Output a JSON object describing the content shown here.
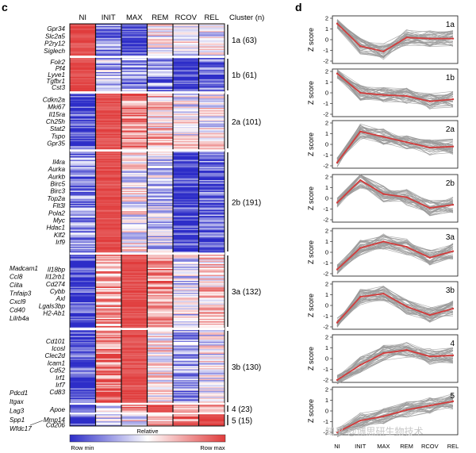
{
  "panel_c_label": "c",
  "panel_d_label": "d",
  "heatmap": {
    "columns": [
      "NI",
      "INIT",
      "MAX",
      "REM",
      "RCOV",
      "REL"
    ],
    "cluster_header": "Cluster (n)",
    "clusters": [
      {
        "name": "1a (63)",
        "genes": [
          "Gpr34",
          "Slc2a5",
          "P2ry12",
          "Siglech"
        ],
        "left_genes": []
      },
      {
        "name": "1b (61)",
        "genes": [
          "Folr2",
          "Pf4",
          "Lyve1",
          "Tgfbr1",
          "Cst3"
        ],
        "left_genes": []
      },
      {
        "name": "2a (101)",
        "genes": [
          "Cdkn2a",
          "Mki67",
          "Il15ra",
          "Ch25h",
          "Stat2",
          "Tspo",
          "Gpr35"
        ],
        "left_genes": []
      },
      {
        "name": "2b (191)",
        "genes": [
          "Il4ra",
          "Aurka",
          "Aurkb",
          "Birc5",
          "Birc3",
          "Top2a",
          "Flt3l",
          "Pola2",
          "Myc",
          "Hdac1",
          "Klf2",
          "Irf9"
        ],
        "left_genes": []
      },
      {
        "name": "3a (132)",
        "genes": [
          "Il18bp",
          "Il12rb1",
          "Cd274",
          "Cybb",
          "Axl",
          "Lgals3bp",
          "H2-Ab1"
        ],
        "left_genes": [
          "Madcam1",
          "Ccl8",
          "Ciita",
          "Tnfaip3",
          "Cxcl9",
          "Cd40",
          "Lilrb4a"
        ]
      },
      {
        "name": "3b (130)",
        "genes": [
          "Cd101",
          "Icosl",
          "Clec2d",
          "Icam1",
          "Cd52",
          "Irf1",
          "Irf7",
          "Cd83"
        ],
        "left_genes": [
          "Pdcd1",
          "Itgax",
          "Lag3"
        ]
      },
      {
        "name": "4 (23)",
        "genes": [
          "Apoe"
        ],
        "left_genes": []
      },
      {
        "name": "5 (15)",
        "genes": [
          "Mmp14",
          "Cd206"
        ],
        "left_genes": [
          "Spp1",
          "Wfdc17"
        ]
      }
    ],
    "colorbar": {
      "title": "Relative",
      "min_label": "Row min",
      "max_label": "Row max",
      "colors": {
        "min": "#2d2dc8",
        "mid": "#ffffff",
        "max": "#e03c3c"
      }
    }
  },
  "chart_data": {
    "type": "line",
    "x": [
      "NI",
      "INIT",
      "MAX",
      "REM",
      "RCOV",
      "REL"
    ],
    "ylabel": "Z score",
    "ylim": [
      -2,
      2
    ],
    "yticks": [
      -2,
      -1,
      0,
      1,
      2
    ],
    "series_colors": {
      "mean": "#d23c3c",
      "genes": "#9a9a9a"
    },
    "panels": [
      {
        "name": "1a",
        "mean": [
          1.5,
          -0.6,
          -1.1,
          0.2,
          0.1,
          0.1
        ]
      },
      {
        "name": "1b",
        "mean": [
          1.8,
          0.0,
          -0.2,
          -0.3,
          -0.8,
          -0.6
        ]
      },
      {
        "name": "2a",
        "mean": [
          -1.7,
          1.2,
          0.7,
          0.2,
          -0.3,
          -0.2
        ]
      },
      {
        "name": "2b",
        "mean": [
          -0.4,
          1.7,
          0.4,
          0.1,
          -0.9,
          -0.6
        ]
      },
      {
        "name": "3a",
        "mean": [
          -1.6,
          0.4,
          1.0,
          0.5,
          -0.5,
          0.1
        ]
      },
      {
        "name": "3b",
        "mean": [
          -1.6,
          0.8,
          1.1,
          -0.1,
          -0.9,
          -0.3
        ]
      },
      {
        "name": "4",
        "mean": [
          -2.0,
          -0.6,
          0.5,
          0.8,
          0.2,
          0.3
        ]
      },
      {
        "name": "5",
        "mean": [
          -2.0,
          -0.9,
          -0.5,
          0.1,
          0.5,
          0.9
        ]
      }
    ]
  },
  "watermark": "知乎 @博思研生物技术"
}
